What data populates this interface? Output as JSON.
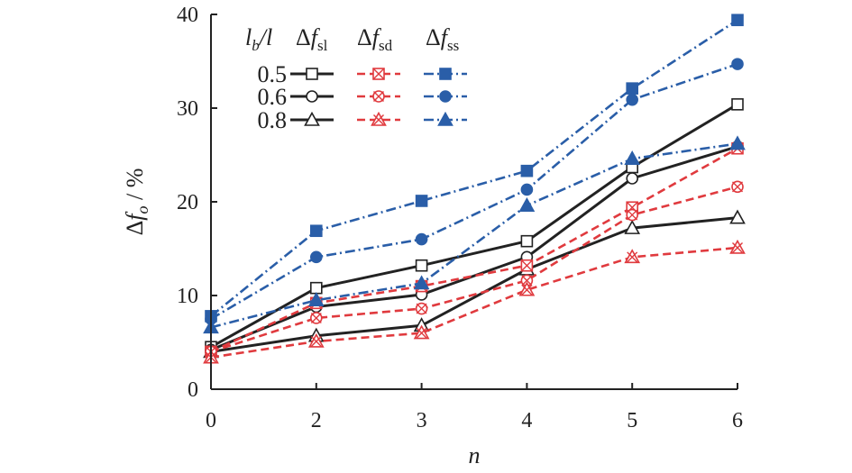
{
  "chart_data": {
    "type": "line",
    "x": [
      "0",
      "2",
      "3",
      "4",
      "5",
      "6"
    ],
    "xlabel": "n",
    "ylabel": {
      "delta": "Δ",
      "f": "f",
      "sub": "o",
      "rest": " / %"
    },
    "ylim": [
      0,
      40
    ],
    "yticks": [
      0,
      10,
      20,
      30,
      40
    ],
    "grid": false,
    "legend": {
      "placement": "top-left",
      "ratio_header": {
        "l": "l",
        "sub": "b",
        "rest": "/l"
      },
      "column_headers": [
        {
          "delta": "Δ",
          "f": "f",
          "sub": "sl"
        },
        {
          "delta": "Δ",
          "f": "f",
          "sub": "sd"
        },
        {
          "delta": "Δ",
          "f": "f",
          "sub": "ss"
        }
      ],
      "row_labels": [
        "0.5",
        "0.6",
        "0.8"
      ]
    },
    "series": [
      {
        "group": "sl",
        "ratio": "0.5",
        "marker": "square",
        "filled": false,
        "color": "#222222",
        "dash": "solid",
        "values": [
          4.5,
          10.8,
          13.2,
          15.8,
          23.7,
          30.4
        ]
      },
      {
        "group": "sl",
        "ratio": "0.6",
        "marker": "circle",
        "filled": false,
        "color": "#222222",
        "dash": "solid",
        "values": [
          4.2,
          8.8,
          10.1,
          14.1,
          22.5,
          25.9
        ]
      },
      {
        "group": "sl",
        "ratio": "0.8",
        "marker": "triangle",
        "filled": false,
        "color": "#222222",
        "dash": "solid",
        "values": [
          4.0,
          5.7,
          6.8,
          12.8,
          17.2,
          18.3
        ]
      },
      {
        "group": "sd",
        "ratio": "0.5",
        "marker": "square-x",
        "filled": false,
        "color": "#e03a3e",
        "dash": "dashed",
        "values": [
          4.0,
          9.2,
          11.0,
          13.2,
          19.4,
          25.7
        ]
      },
      {
        "group": "sd",
        "ratio": "0.6",
        "marker": "circle-x",
        "filled": false,
        "color": "#e03a3e",
        "dash": "dashed",
        "values": [
          4.0,
          7.6,
          8.6,
          11.6,
          18.6,
          21.6
        ]
      },
      {
        "group": "sd",
        "ratio": "0.8",
        "marker": "triangle-x",
        "filled": false,
        "color": "#e03a3e",
        "dash": "dashed",
        "values": [
          3.4,
          5.1,
          6.0,
          10.6,
          14.1,
          15.1
        ]
      },
      {
        "group": "ss",
        "ratio": "0.5",
        "marker": "square",
        "filled": true,
        "color": "#2a5ea8",
        "dash": "dashdot",
        "values": [
          7.8,
          16.9,
          20.1,
          23.3,
          32.1,
          39.4
        ]
      },
      {
        "group": "ss",
        "ratio": "0.6",
        "marker": "circle",
        "filled": true,
        "color": "#2a5ea8",
        "dash": "dashdot",
        "values": [
          7.5,
          14.1,
          16.0,
          21.3,
          30.9,
          34.7
        ]
      },
      {
        "group": "ss",
        "ratio": "0.8",
        "marker": "triangle",
        "filled": true,
        "color": "#2a5ea8",
        "dash": "dashdot",
        "values": [
          6.6,
          9.5,
          11.3,
          19.6,
          24.6,
          26.2
        ]
      }
    ]
  }
}
